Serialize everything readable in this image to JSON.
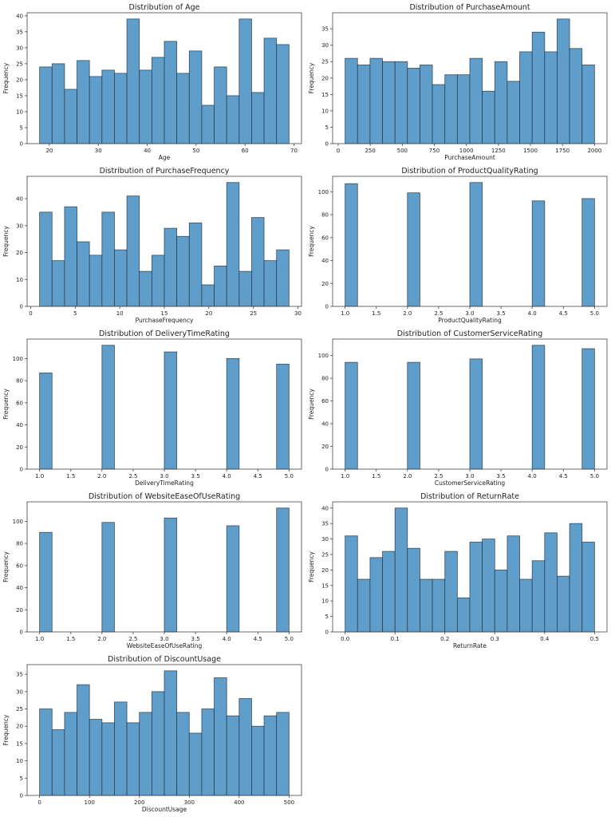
{
  "style": {
    "bar_fill": "#5f9ecb",
    "bar_edge": "#1f2f3f",
    "axis": "#444444"
  },
  "chart_data": [
    {
      "type": "bar",
      "title": "Distribution of Age",
      "xlabel": "Age",
      "ylabel": "Frequency",
      "bin_range": [
        18,
        69
      ],
      "values": [
        24,
        25,
        17,
        26,
        21,
        23,
        22,
        39,
        23,
        27,
        32,
        22,
        29,
        12,
        24,
        15,
        39,
        16,
        33,
        31
      ],
      "xticks": [
        20,
        30,
        40,
        50,
        60,
        70
      ],
      "xtick_labels": [
        "20",
        "30",
        "40",
        "50",
        "60",
        "70"
      ],
      "yticks": [
        0,
        5,
        10,
        15,
        20,
        25,
        30,
        35,
        40
      ],
      "ytick_labels": [
        "0",
        "5",
        "10",
        "15",
        "20",
        "25",
        "30",
        "35",
        "40"
      ],
      "grid": false
    },
    {
      "type": "bar",
      "title": "Distribution of PurchaseAmount",
      "xlabel": "PurchaseAmount",
      "ylabel": "Frequency",
      "bin_range": [
        54,
        2000
      ],
      "values": [
        26,
        24,
        26,
        25,
        25,
        23,
        24,
        18,
        21,
        21,
        26,
        16,
        25,
        19,
        28,
        34,
        28,
        38,
        29,
        24
      ],
      "xticks": [
        0,
        250,
        500,
        750,
        1000,
        1250,
        1500,
        1750,
        2000
      ],
      "xtick_labels": [
        "0",
        "250",
        "500",
        "750",
        "1000",
        "1250",
        "1500",
        "1750",
        "2000"
      ],
      "yticks": [
        0,
        5,
        10,
        15,
        20,
        25,
        30,
        35
      ],
      "ytick_labels": [
        "0",
        "5",
        "10",
        "15",
        "20",
        "25",
        "30",
        "35"
      ],
      "grid": false
    },
    {
      "type": "bar",
      "title": "Distribution of PurchaseFrequency",
      "xlabel": "PurchaseFrequency",
      "ylabel": "Frequency",
      "bin_range": [
        1,
        29
      ],
      "values": [
        35,
        17,
        37,
        24,
        19,
        35,
        21,
        41,
        13,
        19,
        29,
        26,
        31,
        8,
        15,
        46,
        13,
        33,
        17,
        21
      ],
      "xticks": [
        0,
        5,
        10,
        15,
        20,
        25,
        30
      ],
      "xtick_labels": [
        "0",
        "5",
        "10",
        "15",
        "20",
        "25",
        "30"
      ],
      "yticks": [
        0,
        10,
        20,
        30,
        40
      ],
      "ytick_labels": [
        "0",
        "10",
        "20",
        "30",
        "40"
      ],
      "grid": false
    },
    {
      "type": "bar",
      "title": "Distribution of ProductQualityRating",
      "xlabel": "ProductQualityRating",
      "ylabel": "Frequency",
      "bin_range": [
        1,
        5
      ],
      "values": [
        107,
        0,
        0,
        0,
        0,
        99,
        0,
        0,
        0,
        0,
        108,
        0,
        0,
        0,
        0,
        92,
        0,
        0,
        0,
        94
      ],
      "xticks": [
        1,
        1.5,
        2,
        2.5,
        3,
        3.5,
        4,
        4.5,
        5
      ],
      "xtick_labels": [
        "1.0",
        "1.5",
        "2.0",
        "2.5",
        "3.0",
        "3.5",
        "4.0",
        "4.5",
        "5.0"
      ],
      "yticks": [
        0,
        20,
        40,
        60,
        80,
        100
      ],
      "ytick_labels": [
        "0",
        "20",
        "40",
        "60",
        "80",
        "100"
      ],
      "grid": false
    },
    {
      "type": "bar",
      "title": "Distribution of DeliveryTimeRating",
      "xlabel": "DeliveryTimeRating",
      "ylabel": "Frequency",
      "bin_range": [
        1,
        5
      ],
      "values": [
        87,
        0,
        0,
        0,
        0,
        112,
        0,
        0,
        0,
        0,
        106,
        0,
        0,
        0,
        0,
        100,
        0,
        0,
        0,
        95
      ],
      "xticks": [
        1,
        1.5,
        2,
        2.5,
        3,
        3.5,
        4,
        4.5,
        5
      ],
      "xtick_labels": [
        "1.0",
        "1.5",
        "2.0",
        "2.5",
        "3.0",
        "3.5",
        "4.0",
        "4.5",
        "5.0"
      ],
      "yticks": [
        0,
        20,
        40,
        60,
        80,
        100
      ],
      "ytick_labels": [
        "0",
        "20",
        "40",
        "60",
        "80",
        "100"
      ],
      "grid": false
    },
    {
      "type": "bar",
      "title": "Distribution of CustomerServiceRating",
      "xlabel": "CustomerServiceRating",
      "ylabel": "Frequency",
      "bin_range": [
        1,
        5
      ],
      "values": [
        94,
        0,
        0,
        0,
        0,
        94,
        0,
        0,
        0,
        0,
        97,
        0,
        0,
        0,
        0,
        109,
        0,
        0,
        0,
        106
      ],
      "xticks": [
        1,
        1.5,
        2,
        2.5,
        3,
        3.5,
        4,
        4.5,
        5
      ],
      "xtick_labels": [
        "1.0",
        "1.5",
        "2.0",
        "2.5",
        "3.0",
        "3.5",
        "4.0",
        "4.5",
        "5.0"
      ],
      "yticks": [
        0,
        20,
        40,
        60,
        80,
        100
      ],
      "ytick_labels": [
        "0",
        "20",
        "40",
        "60",
        "80",
        "100"
      ],
      "grid": false
    },
    {
      "type": "bar",
      "title": "Distribution of WebsiteEaseOfUseRating",
      "xlabel": "WebsiteEaseOfUseRating",
      "ylabel": "Frequency",
      "bin_range": [
        1,
        5
      ],
      "values": [
        90,
        0,
        0,
        0,
        0,
        99,
        0,
        0,
        0,
        0,
        103,
        0,
        0,
        0,
        0,
        96,
        0,
        0,
        0,
        112
      ],
      "xticks": [
        1,
        1.5,
        2,
        2.5,
        3,
        3.5,
        4,
        4.5,
        5
      ],
      "xtick_labels": [
        "1.0",
        "1.5",
        "2.0",
        "2.5",
        "3.0",
        "3.5",
        "4.0",
        "4.5",
        "5.0"
      ],
      "yticks": [
        0,
        20,
        40,
        60,
        80,
        100
      ],
      "ytick_labels": [
        "0",
        "20",
        "40",
        "60",
        "80",
        "100"
      ],
      "grid": false
    },
    {
      "type": "bar",
      "title": "Distribution of ReturnRate",
      "xlabel": "ReturnRate",
      "ylabel": "Frequency",
      "bin_range": [
        0,
        0.5
      ],
      "values": [
        31,
        17,
        24,
        26,
        40,
        27,
        17,
        17,
        26,
        11,
        29,
        30,
        20,
        31,
        17,
        23,
        32,
        18,
        35,
        29
      ],
      "xticks": [
        0,
        0.1,
        0.2,
        0.3,
        0.4,
        0.5
      ],
      "xtick_labels": [
        "0.0",
        "0.1",
        "0.2",
        "0.3",
        "0.4",
        "0.5"
      ],
      "yticks": [
        0,
        5,
        10,
        15,
        20,
        25,
        30,
        35,
        40
      ],
      "ytick_labels": [
        "0",
        "5",
        "10",
        "15",
        "20",
        "25",
        "30",
        "35",
        "40"
      ],
      "grid": false
    },
    {
      "type": "bar",
      "title": "Distribution of DiscountUsage",
      "xlabel": "DiscountUsage",
      "ylabel": "Frequency",
      "bin_range": [
        0,
        500
      ],
      "values": [
        25,
        19,
        24,
        32,
        22,
        21,
        27,
        21,
        24,
        30,
        36,
        24,
        18,
        25,
        34,
        23,
        28,
        20,
        23,
        24
      ],
      "xticks": [
        0,
        100,
        200,
        300,
        400,
        500
      ],
      "xtick_labels": [
        "0",
        "100",
        "200",
        "300",
        "400",
        "500"
      ],
      "yticks": [
        0,
        5,
        10,
        15,
        20,
        25,
        30,
        35
      ],
      "ytick_labels": [
        "0",
        "5",
        "10",
        "15",
        "20",
        "25",
        "30",
        "35"
      ],
      "grid": false
    }
  ]
}
